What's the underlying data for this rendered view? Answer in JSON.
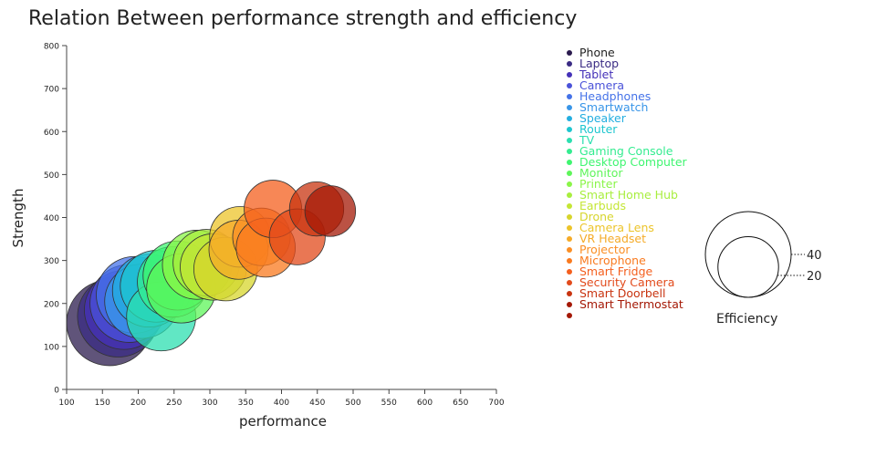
{
  "chart_data": {
    "type": "scatter",
    "title": "Relation Between performance strength and efficiency",
    "xlabel": "performance",
    "ylabel": "Strength",
    "xlim": [
      100,
      700
    ],
    "ylim": [
      0,
      800
    ],
    "xticks": [
      100,
      150,
      200,
      250,
      300,
      350,
      400,
      450,
      500,
      550,
      600,
      650,
      700
    ],
    "yticks": [
      0,
      100,
      200,
      300,
      400,
      500,
      600,
      700,
      800
    ],
    "size_legend": {
      "title": "Efficiency",
      "values": [
        40,
        20
      ]
    },
    "legend_position": "right",
    "series": [
      {
        "name": "Phone",
        "color": "#2b1b4e",
        "x": 160,
        "y": 155,
        "size": 40
      },
      {
        "name": "Laptop",
        "color": "#3a2b84",
        "x": 172,
        "y": 170,
        "size": 36
      },
      {
        "name": "Tablet",
        "color": "#4431b8",
        "x": 180,
        "y": 185,
        "size": 34
      },
      {
        "name": "Camera",
        "color": "#4a52d9",
        "x": 187,
        "y": 200,
        "size": 33
      },
      {
        "name": "Headphones",
        "color": "#4472e8",
        "x": 195,
        "y": 220,
        "size": 32
      },
      {
        "name": "Smartwatch",
        "color": "#3895e8",
        "x": 205,
        "y": 205,
        "size": 30
      },
      {
        "name": "Speaker",
        "color": "#23aee0",
        "x": 215,
        "y": 230,
        "size": 29
      },
      {
        "name": "Router",
        "color": "#1ec6cf",
        "x": 225,
        "y": 240,
        "size": 28
      },
      {
        "name": "TV",
        "color": "#2cdfb0",
        "x": 232,
        "y": 170,
        "size": 26
      },
      {
        "name": "Gaming Console",
        "color": "#34ec90",
        "x": 248,
        "y": 250,
        "size": 27
      },
      {
        "name": "Desktop Computer",
        "color": "#3ff570",
        "x": 255,
        "y": 265,
        "size": 26
      },
      {
        "name": "Monitor",
        "color": "#5ef55a",
        "x": 260,
        "y": 235,
        "size": 26
      },
      {
        "name": "Printer",
        "color": "#8af548",
        "x": 282,
        "y": 290,
        "size": 26
      },
      {
        "name": "Smart Home Hub",
        "color": "#a8ee3e",
        "x": 295,
        "y": 295,
        "size": 24
      },
      {
        "name": "Earbuds",
        "color": "#c4e634",
        "x": 305,
        "y": 285,
        "size": 24
      },
      {
        "name": "Drone",
        "color": "#d7d52c",
        "x": 322,
        "y": 280,
        "size": 22
      },
      {
        "name": "Camera Lens",
        "color": "#ecc42a",
        "x": 342,
        "y": 355,
        "size": 20
      },
      {
        "name": "VR Headset",
        "color": "#f5ab28",
        "x": 340,
        "y": 325,
        "size": 19
      },
      {
        "name": "Projector",
        "color": "#fb8f25",
        "x": 372,
        "y": 355,
        "size": 18
      },
      {
        "name": "Microphone",
        "color": "#f97a1f",
        "x": 378,
        "y": 330,
        "size": 19
      },
      {
        "name": "Smart Fridge",
        "color": "#f45f1e",
        "x": 388,
        "y": 420,
        "size": 18
      },
      {
        "name": "Security Camera",
        "color": "#e24a1b",
        "x": 422,
        "y": 355,
        "size": 17
      },
      {
        "name": "Smart Doorbell",
        "color": "#c83410",
        "x": 449,
        "y": 420,
        "size": 16
      },
      {
        "name": "Smart Thermostat",
        "color": "#a41805",
        "x": 468,
        "y": 415,
        "size": 14
      }
    ]
  }
}
